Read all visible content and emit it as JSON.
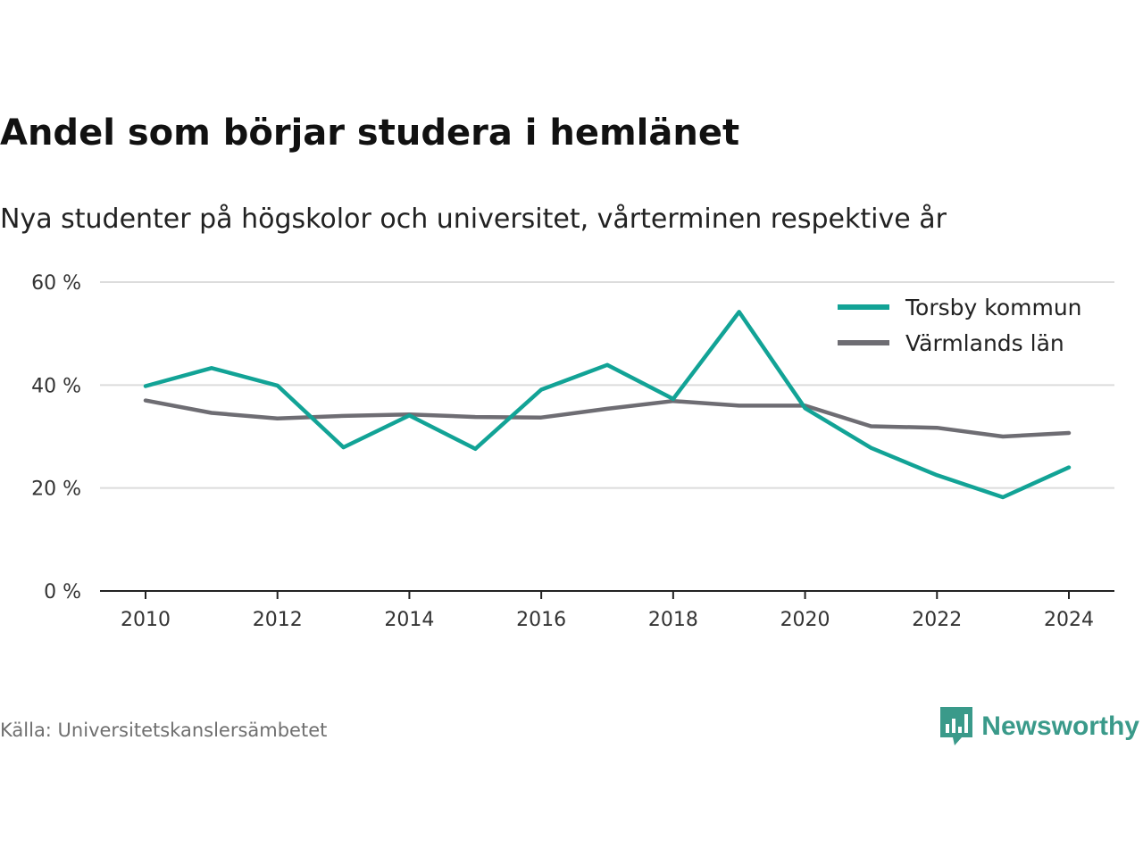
{
  "title": "Andel som börjar studera i hemlänet",
  "subtitle": "Nya studenter på högskolor och universitet, vårterminen respektive år",
  "source": "Källa: Universitetskanslersämbetet",
  "brand": {
    "name": "Newsworthy",
    "icon": "newsworthy-logo-icon",
    "color": "#3a9a8a"
  },
  "chart_data": {
    "type": "line",
    "title": "Andel som börjar studera i hemlänet",
    "subtitle": "Nya studenter på högskolor och universitet, vårterminen respektive år",
    "x": [
      2010,
      2011,
      2012,
      2013,
      2014,
      2015,
      2016,
      2017,
      2018,
      2019,
      2020,
      2021,
      2022,
      2023,
      2024
    ],
    "xticks": [
      "2010",
      "2012",
      "2014",
      "2016",
      "2018",
      "2020",
      "2022",
      "2024"
    ],
    "yticks": [
      "0 %",
      "20 %",
      "40 %",
      "60 %"
    ],
    "ylim": [
      0,
      60
    ],
    "grid": true,
    "legend_position": "top-right",
    "series": [
      {
        "name": "Torsby kommun",
        "color": "#12a396",
        "values": [
          39.8,
          43.3,
          39.9,
          27.9,
          34.1,
          27.6,
          39.1,
          43.9,
          37.3,
          54.2,
          35.5,
          27.8,
          22.5,
          18.2,
          24.0
        ]
      },
      {
        "name": "Värmlands län",
        "color": "#6e6d73",
        "values": [
          37.0,
          34.6,
          33.5,
          34.0,
          34.3,
          33.8,
          33.7,
          35.4,
          36.9,
          36.0,
          36.0,
          32.0,
          31.7,
          30.0,
          30.7
        ]
      }
    ]
  }
}
